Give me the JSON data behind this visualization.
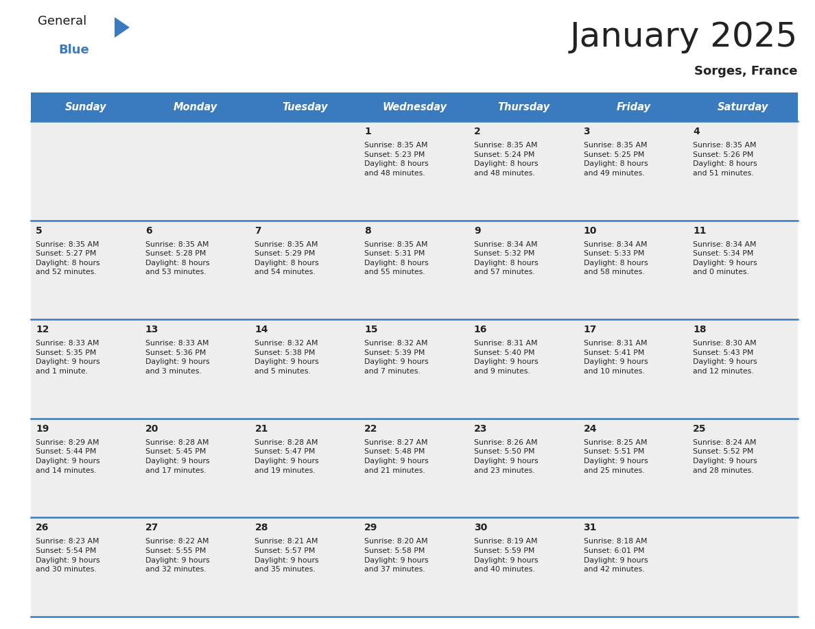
{
  "title": "January 2025",
  "subtitle": "Sorges, France",
  "header_color": "#3a7abf",
  "header_text_color": "#ffffff",
  "cell_bg_light": "#eeeeee",
  "cell_bg_white": "#ffffff",
  "separator_color": "#3a7abf",
  "text_color": "#222222",
  "days_of_week": [
    "Sunday",
    "Monday",
    "Tuesday",
    "Wednesday",
    "Thursday",
    "Friday",
    "Saturday"
  ],
  "weeks": [
    [
      {
        "day": "",
        "info": ""
      },
      {
        "day": "",
        "info": ""
      },
      {
        "day": "",
        "info": ""
      },
      {
        "day": "1",
        "info": "Sunrise: 8:35 AM\nSunset: 5:23 PM\nDaylight: 8 hours\nand 48 minutes."
      },
      {
        "day": "2",
        "info": "Sunrise: 8:35 AM\nSunset: 5:24 PM\nDaylight: 8 hours\nand 48 minutes."
      },
      {
        "day": "3",
        "info": "Sunrise: 8:35 AM\nSunset: 5:25 PM\nDaylight: 8 hours\nand 49 minutes."
      },
      {
        "day": "4",
        "info": "Sunrise: 8:35 AM\nSunset: 5:26 PM\nDaylight: 8 hours\nand 51 minutes."
      }
    ],
    [
      {
        "day": "5",
        "info": "Sunrise: 8:35 AM\nSunset: 5:27 PM\nDaylight: 8 hours\nand 52 minutes."
      },
      {
        "day": "6",
        "info": "Sunrise: 8:35 AM\nSunset: 5:28 PM\nDaylight: 8 hours\nand 53 minutes."
      },
      {
        "day": "7",
        "info": "Sunrise: 8:35 AM\nSunset: 5:29 PM\nDaylight: 8 hours\nand 54 minutes."
      },
      {
        "day": "8",
        "info": "Sunrise: 8:35 AM\nSunset: 5:31 PM\nDaylight: 8 hours\nand 55 minutes."
      },
      {
        "day": "9",
        "info": "Sunrise: 8:34 AM\nSunset: 5:32 PM\nDaylight: 8 hours\nand 57 minutes."
      },
      {
        "day": "10",
        "info": "Sunrise: 8:34 AM\nSunset: 5:33 PM\nDaylight: 8 hours\nand 58 minutes."
      },
      {
        "day": "11",
        "info": "Sunrise: 8:34 AM\nSunset: 5:34 PM\nDaylight: 9 hours\nand 0 minutes."
      }
    ],
    [
      {
        "day": "12",
        "info": "Sunrise: 8:33 AM\nSunset: 5:35 PM\nDaylight: 9 hours\nand 1 minute."
      },
      {
        "day": "13",
        "info": "Sunrise: 8:33 AM\nSunset: 5:36 PM\nDaylight: 9 hours\nand 3 minutes."
      },
      {
        "day": "14",
        "info": "Sunrise: 8:32 AM\nSunset: 5:38 PM\nDaylight: 9 hours\nand 5 minutes."
      },
      {
        "day": "15",
        "info": "Sunrise: 8:32 AM\nSunset: 5:39 PM\nDaylight: 9 hours\nand 7 minutes."
      },
      {
        "day": "16",
        "info": "Sunrise: 8:31 AM\nSunset: 5:40 PM\nDaylight: 9 hours\nand 9 minutes."
      },
      {
        "day": "17",
        "info": "Sunrise: 8:31 AM\nSunset: 5:41 PM\nDaylight: 9 hours\nand 10 minutes."
      },
      {
        "day": "18",
        "info": "Sunrise: 8:30 AM\nSunset: 5:43 PM\nDaylight: 9 hours\nand 12 minutes."
      }
    ],
    [
      {
        "day": "19",
        "info": "Sunrise: 8:29 AM\nSunset: 5:44 PM\nDaylight: 9 hours\nand 14 minutes."
      },
      {
        "day": "20",
        "info": "Sunrise: 8:28 AM\nSunset: 5:45 PM\nDaylight: 9 hours\nand 17 minutes."
      },
      {
        "day": "21",
        "info": "Sunrise: 8:28 AM\nSunset: 5:47 PM\nDaylight: 9 hours\nand 19 minutes."
      },
      {
        "day": "22",
        "info": "Sunrise: 8:27 AM\nSunset: 5:48 PM\nDaylight: 9 hours\nand 21 minutes."
      },
      {
        "day": "23",
        "info": "Sunrise: 8:26 AM\nSunset: 5:50 PM\nDaylight: 9 hours\nand 23 minutes."
      },
      {
        "day": "24",
        "info": "Sunrise: 8:25 AM\nSunset: 5:51 PM\nDaylight: 9 hours\nand 25 minutes."
      },
      {
        "day": "25",
        "info": "Sunrise: 8:24 AM\nSunset: 5:52 PM\nDaylight: 9 hours\nand 28 minutes."
      }
    ],
    [
      {
        "day": "26",
        "info": "Sunrise: 8:23 AM\nSunset: 5:54 PM\nDaylight: 9 hours\nand 30 minutes."
      },
      {
        "day": "27",
        "info": "Sunrise: 8:22 AM\nSunset: 5:55 PM\nDaylight: 9 hours\nand 32 minutes."
      },
      {
        "day": "28",
        "info": "Sunrise: 8:21 AM\nSunset: 5:57 PM\nDaylight: 9 hours\nand 35 minutes."
      },
      {
        "day": "29",
        "info": "Sunrise: 8:20 AM\nSunset: 5:58 PM\nDaylight: 9 hours\nand 37 minutes."
      },
      {
        "day": "30",
        "info": "Sunrise: 8:19 AM\nSunset: 5:59 PM\nDaylight: 9 hours\nand 40 minutes."
      },
      {
        "day": "31",
        "info": "Sunrise: 8:18 AM\nSunset: 6:01 PM\nDaylight: 9 hours\nand 42 minutes."
      },
      {
        "day": "",
        "info": ""
      }
    ]
  ],
  "logo_text_general": "General",
  "logo_text_blue": "Blue",
  "logo_color_general": "#1a1a1a",
  "logo_color_blue": "#3a7abf",
  "logo_triangle_color": "#3a7abf",
  "fig_width": 11.88,
  "fig_height": 9.18,
  "dpi": 100
}
